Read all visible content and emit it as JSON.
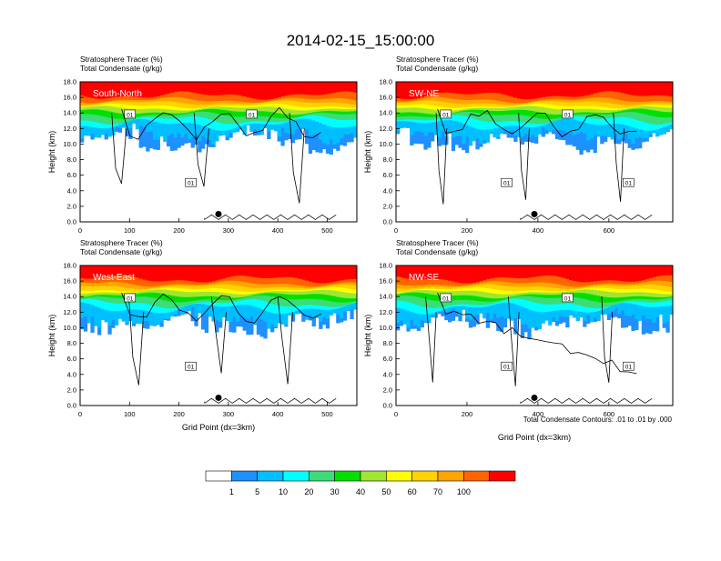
{
  "title": "2014-02-15_15:00:00",
  "contour_note": "Total Condensate Contours: .01 to .01 by .000",
  "colors": [
    "#ffffff",
    "#1e90ff",
    "#00bfff",
    "#00ffff",
    "#3cdc78",
    "#00e000",
    "#a0e632",
    "#ffff00",
    "#ffd200",
    "#ffa500",
    "#ff6400",
    "#ff0000"
  ],
  "chart_data": [
    {
      "type": "heatmap",
      "panel_label": "South-North",
      "header_line1": "Stratosphere Tracer   (%)",
      "header_line2": "Total Condensate   (g/kg)",
      "ylabel": "Height (km)",
      "xlabel": "",
      "xlim": [
        0,
        560
      ],
      "ylim": [
        0,
        18
      ],
      "xticks": [
        "0",
        "100",
        "200",
        "300",
        "400",
        "500"
      ],
      "yticks": [
        "0.0",
        "2.0",
        "4.0",
        "6.0",
        "8.0",
        "10.0",
        "12.0",
        "14.0",
        "16.0",
        "18.0"
      ],
      "marker_x": 280,
      "marker_y": 1.0,
      "contour_labels": [
        "01",
        "01",
        "01"
      ]
    },
    {
      "type": "heatmap",
      "panel_label": "SW-NE",
      "header_line1": "Stratosphere Tracer   (%)",
      "header_line2": "Total Condensate   (g/kg)",
      "ylabel": "Height (km)",
      "xlabel": "",
      "xlim": [
        0,
        780
      ],
      "ylim": [
        0,
        18
      ],
      "xticks": [
        "0",
        "200",
        "400",
        "600"
      ],
      "yticks": [
        "0.0",
        "2.0",
        "4.0",
        "6.0",
        "8.0",
        "10.0",
        "12.0",
        "14.0",
        "16.0",
        "18.0"
      ],
      "marker_x": 390,
      "marker_y": 1.0,
      "contour_labels": [
        "01",
        "01",
        "01",
        "01"
      ]
    },
    {
      "type": "heatmap",
      "panel_label": "West-East",
      "header_line1": "Stratosphere Tracer   (%)",
      "header_line2": "Total Condensate   (g/kg)",
      "ylabel": "Height (km)",
      "xlabel": "Grid Point (dx=3km)",
      "xlim": [
        0,
        560
      ],
      "ylim": [
        0,
        18
      ],
      "xticks": [
        "0",
        "100",
        "200",
        "300",
        "400",
        "500"
      ],
      "yticks": [
        "0.0",
        "2.0",
        "4.0",
        "6.0",
        "8.0",
        "10.0",
        "12.0",
        "14.0",
        "16.0",
        "18.0"
      ],
      "marker_x": 280,
      "marker_y": 1.0,
      "contour_labels": [
        "01",
        "01"
      ]
    },
    {
      "type": "heatmap",
      "panel_label": "NW-SE",
      "header_line1": "Stratosphere Tracer   (%)",
      "header_line2": "Total Condensate   (g/kg)",
      "ylabel": "Height (km)",
      "xlabel": "Grid Point (dx=3km)",
      "xlim": [
        0,
        780
      ],
      "ylim": [
        0,
        18
      ],
      "xticks": [
        "0",
        "200",
        "400",
        "600"
      ],
      "yticks": [
        "0.0",
        "2.0",
        "4.0",
        "6.0",
        "8.0",
        "10.0",
        "12.0",
        "14.0",
        "16.0",
        "18.0"
      ],
      "marker_x": 390,
      "marker_y": 1.0,
      "contour_labels": [
        "01",
        "01",
        "01",
        "01"
      ]
    }
  ],
  "colorbar": {
    "labels": [
      "1",
      "5",
      "10",
      "20",
      "30",
      "40",
      "50",
      "60",
      "70",
      "100"
    ]
  }
}
